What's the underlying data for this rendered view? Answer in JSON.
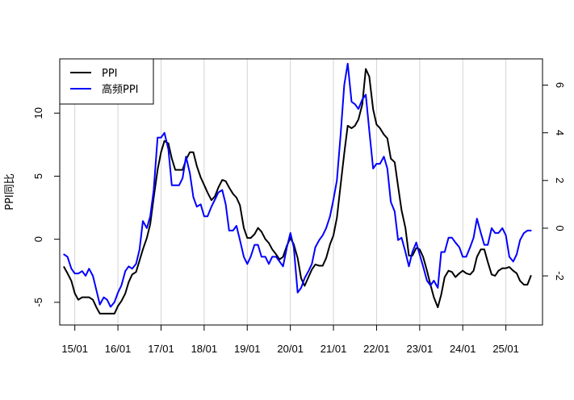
{
  "chart_data": {
    "type": "line",
    "title": "",
    "xlabel": "",
    "ylabel": "PPI同比",
    "x_tick_labels": [
      "15/01",
      "16/01",
      "17/01",
      "18/01",
      "19/01",
      "20/01",
      "21/01",
      "22/01",
      "23/01",
      "24/01",
      "25/01"
    ],
    "x_range": [
      2014.65,
      2025.85
    ],
    "ylim_left": [
      -6.8,
      14.3
    ],
    "ylim_right": [
      -4.06,
      7.1
    ],
    "yticks_left": [
      -5,
      0,
      5,
      10
    ],
    "yticks_right": [
      -2,
      0,
      2,
      4,
      6
    ],
    "grid_x": true,
    "legend": {
      "position": "top-left",
      "entries": [
        {
          "label": "PPI",
          "color": "#000000"
        },
        {
          "label": "高频PPI",
          "color": "#0000ff"
        }
      ]
    },
    "series": [
      {
        "name": "PPI",
        "axis": "left",
        "color": "#000000",
        "points": [
          [
            2014.75,
            -2.2
          ],
          [
            2014.83,
            -2.7
          ],
          [
            2014.92,
            -3.3
          ],
          [
            2015.0,
            -4.3
          ],
          [
            2015.08,
            -4.8
          ],
          [
            2015.17,
            -4.6
          ],
          [
            2015.25,
            -4.6
          ],
          [
            2015.33,
            -4.6
          ],
          [
            2015.42,
            -4.8
          ],
          [
            2015.5,
            -5.4
          ],
          [
            2015.58,
            -5.9
          ],
          [
            2015.67,
            -5.9
          ],
          [
            2015.75,
            -5.9
          ],
          [
            2015.83,
            -5.9
          ],
          [
            2015.92,
            -5.9
          ],
          [
            2016.0,
            -5.3
          ],
          [
            2016.08,
            -4.9
          ],
          [
            2016.17,
            -4.3
          ],
          [
            2016.25,
            -3.4
          ],
          [
            2016.33,
            -2.8
          ],
          [
            2016.42,
            -2.6
          ],
          [
            2016.5,
            -1.7
          ],
          [
            2016.58,
            -0.8
          ],
          [
            2016.67,
            0.1
          ],
          [
            2016.75,
            1.2
          ],
          [
            2016.83,
            3.3
          ],
          [
            2016.92,
            5.5
          ],
          [
            2017.0,
            6.9
          ],
          [
            2017.08,
            7.8
          ],
          [
            2017.17,
            7.6
          ],
          [
            2017.25,
            6.4
          ],
          [
            2017.33,
            5.5
          ],
          [
            2017.42,
            5.5
          ],
          [
            2017.5,
            5.5
          ],
          [
            2017.58,
            6.3
          ],
          [
            2017.67,
            6.9
          ],
          [
            2017.75,
            6.9
          ],
          [
            2017.83,
            5.8
          ],
          [
            2017.92,
            4.9
          ],
          [
            2018.0,
            4.3
          ],
          [
            2018.08,
            3.7
          ],
          [
            2018.17,
            3.1
          ],
          [
            2018.25,
            3.4
          ],
          [
            2018.33,
            4.1
          ],
          [
            2018.42,
            4.7
          ],
          [
            2018.5,
            4.6
          ],
          [
            2018.58,
            4.1
          ],
          [
            2018.67,
            3.6
          ],
          [
            2018.75,
            3.3
          ],
          [
            2018.83,
            2.7
          ],
          [
            2018.92,
            0.9
          ],
          [
            2019.0,
            0.1
          ],
          [
            2019.08,
            0.1
          ],
          [
            2019.17,
            0.4
          ],
          [
            2019.25,
            0.9
          ],
          [
            2019.33,
            0.6
          ],
          [
            2019.42,
            0.0
          ],
          [
            2019.5,
            -0.3
          ],
          [
            2019.58,
            -0.8
          ],
          [
            2019.67,
            -1.2
          ],
          [
            2019.75,
            -1.6
          ],
          [
            2019.83,
            -1.4
          ],
          [
            2019.92,
            -0.5
          ],
          [
            2020.0,
            0.1
          ],
          [
            2020.08,
            -0.4
          ],
          [
            2020.17,
            -1.5
          ],
          [
            2020.25,
            -3.1
          ],
          [
            2020.33,
            -3.7
          ],
          [
            2020.42,
            -3.0
          ],
          [
            2020.5,
            -2.4
          ],
          [
            2020.58,
            -2.0
          ],
          [
            2020.67,
            -2.1
          ],
          [
            2020.75,
            -2.1
          ],
          [
            2020.83,
            -1.5
          ],
          [
            2020.92,
            -0.4
          ],
          [
            2021.0,
            0.3
          ],
          [
            2021.08,
            1.7
          ],
          [
            2021.17,
            4.4
          ],
          [
            2021.25,
            6.8
          ],
          [
            2021.33,
            9.0
          ],
          [
            2021.42,
            8.8
          ],
          [
            2021.5,
            9.0
          ],
          [
            2021.58,
            9.5
          ],
          [
            2021.67,
            10.7
          ],
          [
            2021.75,
            13.5
          ],
          [
            2021.83,
            12.9
          ],
          [
            2021.92,
            10.3
          ],
          [
            2022.0,
            9.1
          ],
          [
            2022.08,
            8.8
          ],
          [
            2022.17,
            8.3
          ],
          [
            2022.25,
            8.0
          ],
          [
            2022.33,
            6.4
          ],
          [
            2022.42,
            6.1
          ],
          [
            2022.5,
            4.2
          ],
          [
            2022.58,
            2.3
          ],
          [
            2022.67,
            0.9
          ],
          [
            2022.75,
            -1.3
          ],
          [
            2022.83,
            -1.3
          ],
          [
            2022.92,
            -0.7
          ],
          [
            2023.0,
            -0.8
          ],
          [
            2023.08,
            -1.4
          ],
          [
            2023.17,
            -2.5
          ],
          [
            2023.25,
            -3.6
          ],
          [
            2023.33,
            -4.6
          ],
          [
            2023.42,
            -5.4
          ],
          [
            2023.5,
            -4.4
          ],
          [
            2023.58,
            -3.0
          ],
          [
            2023.67,
            -2.5
          ],
          [
            2023.75,
            -2.6
          ],
          [
            2023.83,
            -3.0
          ],
          [
            2023.92,
            -2.7
          ],
          [
            2024.0,
            -2.5
          ],
          [
            2024.08,
            -2.7
          ],
          [
            2024.17,
            -2.8
          ],
          [
            2024.25,
            -2.5
          ],
          [
            2024.33,
            -1.4
          ],
          [
            2024.42,
            -0.8
          ],
          [
            2024.5,
            -0.8
          ],
          [
            2024.58,
            -1.8
          ],
          [
            2024.67,
            -2.8
          ],
          [
            2024.75,
            -2.9
          ],
          [
            2024.83,
            -2.5
          ],
          [
            2024.92,
            -2.3
          ],
          [
            2025.0,
            -2.3
          ],
          [
            2025.08,
            -2.2
          ],
          [
            2025.17,
            -2.5
          ],
          [
            2025.25,
            -2.7
          ],
          [
            2025.33,
            -3.3
          ],
          [
            2025.42,
            -3.6
          ],
          [
            2025.5,
            -3.6
          ],
          [
            2025.58,
            -2.9
          ]
        ]
      },
      {
        "name": "高频PPI",
        "axis": "right",
        "color": "#0000ff",
        "points": [
          [
            2014.75,
            -1.1
          ],
          [
            2014.83,
            -1.2
          ],
          [
            2014.92,
            -1.7
          ],
          [
            2015.0,
            -1.9
          ],
          [
            2015.08,
            -1.9
          ],
          [
            2015.17,
            -1.8
          ],
          [
            2015.25,
            -2.0
          ],
          [
            2015.33,
            -1.7
          ],
          [
            2015.42,
            -2.0
          ],
          [
            2015.5,
            -2.6
          ],
          [
            2015.58,
            -3.2
          ],
          [
            2015.67,
            -2.9
          ],
          [
            2015.75,
            -3.0
          ],
          [
            2015.83,
            -3.3
          ],
          [
            2015.92,
            -3.1
          ],
          [
            2016.0,
            -2.7
          ],
          [
            2016.08,
            -2.4
          ],
          [
            2016.17,
            -1.8
          ],
          [
            2016.25,
            -1.6
          ],
          [
            2016.33,
            -1.7
          ],
          [
            2016.42,
            -1.5
          ],
          [
            2016.5,
            -0.9
          ],
          [
            2016.58,
            0.3
          ],
          [
            2016.67,
            0.0
          ],
          [
            2016.75,
            0.5
          ],
          [
            2016.83,
            1.6
          ],
          [
            2016.92,
            3.8
          ],
          [
            2017.0,
            3.8
          ],
          [
            2017.08,
            4.0
          ],
          [
            2017.17,
            3.3
          ],
          [
            2017.25,
            1.8
          ],
          [
            2017.33,
            1.8
          ],
          [
            2017.42,
            1.8
          ],
          [
            2017.5,
            2.1
          ],
          [
            2017.58,
            3.0
          ],
          [
            2017.67,
            2.3
          ],
          [
            2017.75,
            1.3
          ],
          [
            2017.83,
            0.9
          ],
          [
            2017.92,
            1.0
          ],
          [
            2018.0,
            0.5
          ],
          [
            2018.08,
            0.5
          ],
          [
            2018.17,
            0.9
          ],
          [
            2018.25,
            1.2
          ],
          [
            2018.33,
            1.5
          ],
          [
            2018.42,
            1.6
          ],
          [
            2018.5,
            1.0
          ],
          [
            2018.58,
            -0.1
          ],
          [
            2018.67,
            -0.1
          ],
          [
            2018.75,
            0.1
          ],
          [
            2018.83,
            -0.5
          ],
          [
            2018.92,
            -1.2
          ],
          [
            2019.0,
            -1.5
          ],
          [
            2019.08,
            -1.2
          ],
          [
            2019.17,
            -0.7
          ],
          [
            2019.25,
            -0.7
          ],
          [
            2019.33,
            -1.2
          ],
          [
            2019.42,
            -1.2
          ],
          [
            2019.5,
            -1.5
          ],
          [
            2019.58,
            -1.2
          ],
          [
            2019.67,
            -1.2
          ],
          [
            2019.75,
            -1.4
          ],
          [
            2019.83,
            -1.6
          ],
          [
            2019.92,
            -0.8
          ],
          [
            2020.0,
            -0.2
          ],
          [
            2020.08,
            -0.8
          ],
          [
            2020.17,
            -2.7
          ],
          [
            2020.25,
            -2.5
          ],
          [
            2020.33,
            -2.1
          ],
          [
            2020.42,
            -1.8
          ],
          [
            2020.5,
            -1.5
          ],
          [
            2020.58,
            -0.8
          ],
          [
            2020.67,
            -0.5
          ],
          [
            2020.75,
            -0.3
          ],
          [
            2020.83,
            0.0
          ],
          [
            2020.92,
            0.5
          ],
          [
            2021.0,
            1.2
          ],
          [
            2021.08,
            2.0
          ],
          [
            2021.17,
            4.0
          ],
          [
            2021.25,
            6.0
          ],
          [
            2021.33,
            6.9
          ],
          [
            2021.42,
            5.3
          ],
          [
            2021.5,
            5.2
          ],
          [
            2021.58,
            5.0
          ],
          [
            2021.67,
            5.4
          ],
          [
            2021.75,
            5.6
          ],
          [
            2021.83,
            4.1
          ],
          [
            2021.92,
            2.5
          ],
          [
            2022.0,
            2.7
          ],
          [
            2022.08,
            2.7
          ],
          [
            2022.17,
            3.0
          ],
          [
            2022.25,
            2.5
          ],
          [
            2022.33,
            1.1
          ],
          [
            2022.42,
            0.7
          ],
          [
            2022.5,
            -0.5
          ],
          [
            2022.58,
            -0.4
          ],
          [
            2022.67,
            -1.0
          ],
          [
            2022.75,
            -1.6
          ],
          [
            2022.83,
            -1.0
          ],
          [
            2022.92,
            -0.6
          ],
          [
            2023.0,
            -1.1
          ],
          [
            2023.08,
            -1.6
          ],
          [
            2023.17,
            -2.2
          ],
          [
            2023.25,
            -2.4
          ],
          [
            2023.33,
            -2.2
          ],
          [
            2023.42,
            -2.5
          ],
          [
            2023.5,
            -1.0
          ],
          [
            2023.58,
            -1.0
          ],
          [
            2023.67,
            -0.4
          ],
          [
            2023.75,
            -0.4
          ],
          [
            2023.83,
            -0.6
          ],
          [
            2023.92,
            -0.8
          ],
          [
            2024.0,
            -1.2
          ],
          [
            2024.08,
            -1.2
          ],
          [
            2024.17,
            -0.8
          ],
          [
            2024.25,
            -0.4
          ],
          [
            2024.33,
            0.4
          ],
          [
            2024.42,
            -0.2
          ],
          [
            2024.5,
            -0.7
          ],
          [
            2024.58,
            -0.7
          ],
          [
            2024.67,
            0.0
          ],
          [
            2024.75,
            -0.2
          ],
          [
            2024.83,
            -0.2
          ],
          [
            2024.92,
            0.0
          ],
          [
            2025.0,
            -0.3
          ],
          [
            2025.08,
            -1.2
          ],
          [
            2025.17,
            -1.4
          ],
          [
            2025.25,
            -1.1
          ],
          [
            2025.33,
            -0.5
          ],
          [
            2025.42,
            -0.2
          ],
          [
            2025.5,
            -0.1
          ],
          [
            2025.58,
            -0.1
          ]
        ]
      }
    ]
  }
}
